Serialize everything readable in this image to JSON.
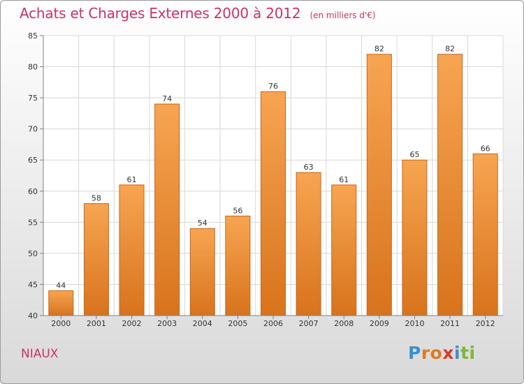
{
  "title": "Achats et Charges Externes 2000 à 2012",
  "subtitle": "(en milliers d'€)",
  "commune": "NIAUX",
  "brand": {
    "letters": [
      {
        "ch": "P",
        "color": "#3a8fd0"
      },
      {
        "ch": "r",
        "color": "#e07b1f"
      },
      {
        "ch": "o",
        "color": "#e07b1f"
      },
      {
        "ch": "x",
        "color": "#d93b2a"
      },
      {
        "ch": "i",
        "color": "#3a8fd0"
      },
      {
        "ch": "t",
        "color": "#7cb832"
      },
      {
        "ch": "i",
        "color": "#7cb832"
      }
    ]
  },
  "colors": {
    "title": "#cc3366",
    "bar_top": "#f7a552",
    "bar_bottom": "#d8731c",
    "bar_edge": "#c8641a",
    "grid": "#d8d8d8",
    "axis": "#808080",
    "text": "#333333"
  },
  "chart_data": {
    "type": "bar",
    "title": "Achats et Charges Externes 2000 à 2012",
    "subtitle": "(en milliers d'€)",
    "xlabel": "",
    "ylabel": "",
    "categories": [
      "2000",
      "2001",
      "2002",
      "2003",
      "2004",
      "2005",
      "2006",
      "2007",
      "2008",
      "2009",
      "2010",
      "2011",
      "2012"
    ],
    "values": [
      44,
      58,
      61,
      74,
      54,
      56,
      76,
      63,
      61,
      82,
      65,
      82,
      66
    ],
    "ylim": [
      40,
      85
    ],
    "yticks": [
      40,
      45,
      50,
      55,
      60,
      65,
      70,
      75,
      80,
      85
    ],
    "grid": true,
    "legend": "none"
  }
}
